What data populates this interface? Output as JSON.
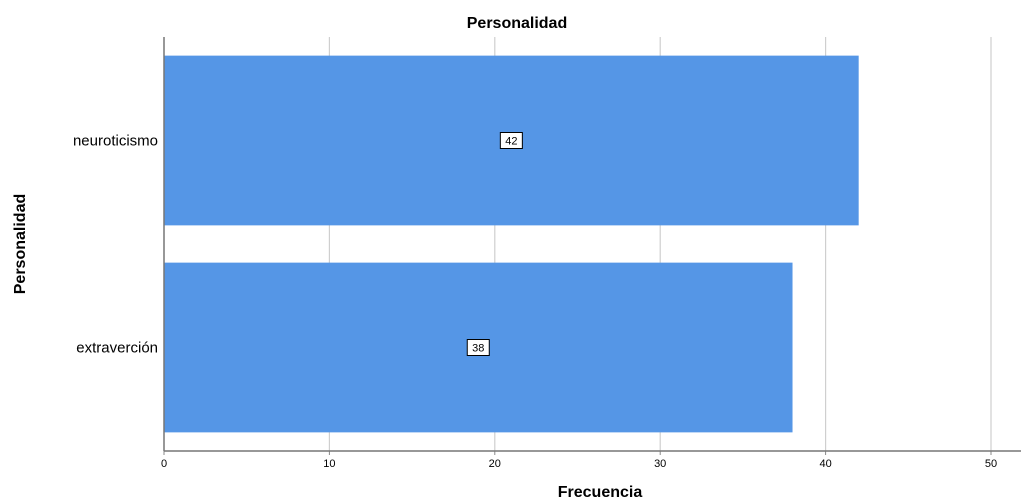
{
  "chart_data": {
    "type": "bar",
    "orientation": "horizontal",
    "title": "Personalidad",
    "xlabel": "Frecuencia",
    "ylabel": "Personalidad",
    "categories": [
      "neuroticismo",
      "extraverción"
    ],
    "values": [
      42,
      38
    ],
    "xlim": [
      0,
      50
    ],
    "xticks": [
      0,
      10,
      20,
      30,
      40,
      50
    ],
    "grid": true,
    "bar_color": "#5596e6",
    "data_labels": true
  }
}
